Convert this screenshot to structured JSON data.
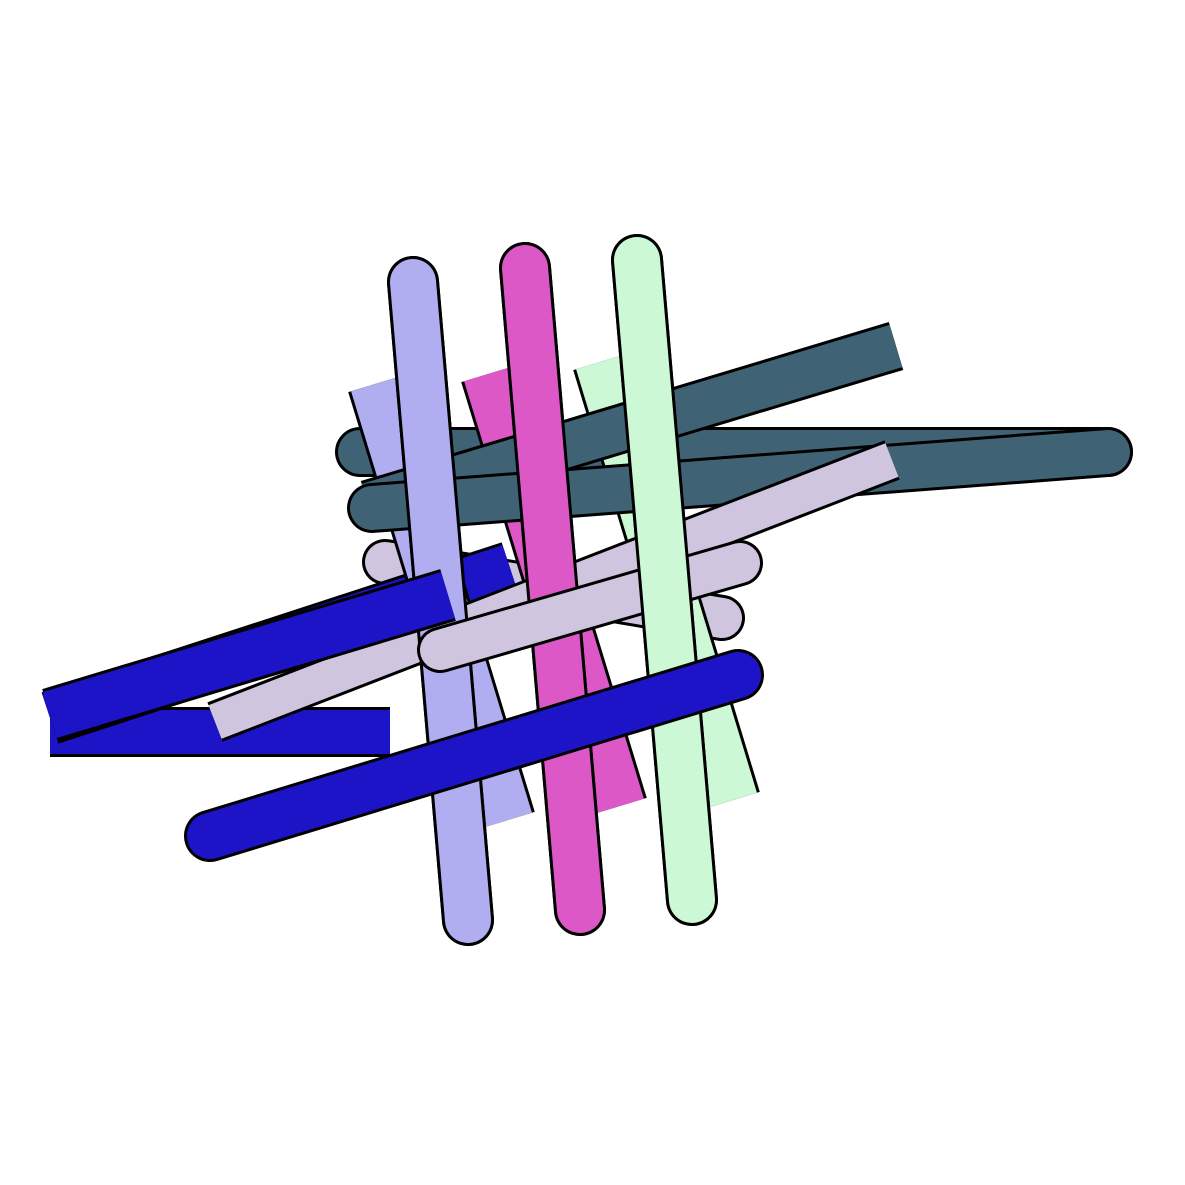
{
  "colors": {
    "background": "#ffffff",
    "outline": "#000000",
    "lavender": "#b0aef0",
    "magenta": "#dc58c6",
    "mint": "#cdf8d6",
    "slate": "#3f6374",
    "blue": "#1c14c6",
    "lilac": "#cfc5de"
  }
}
